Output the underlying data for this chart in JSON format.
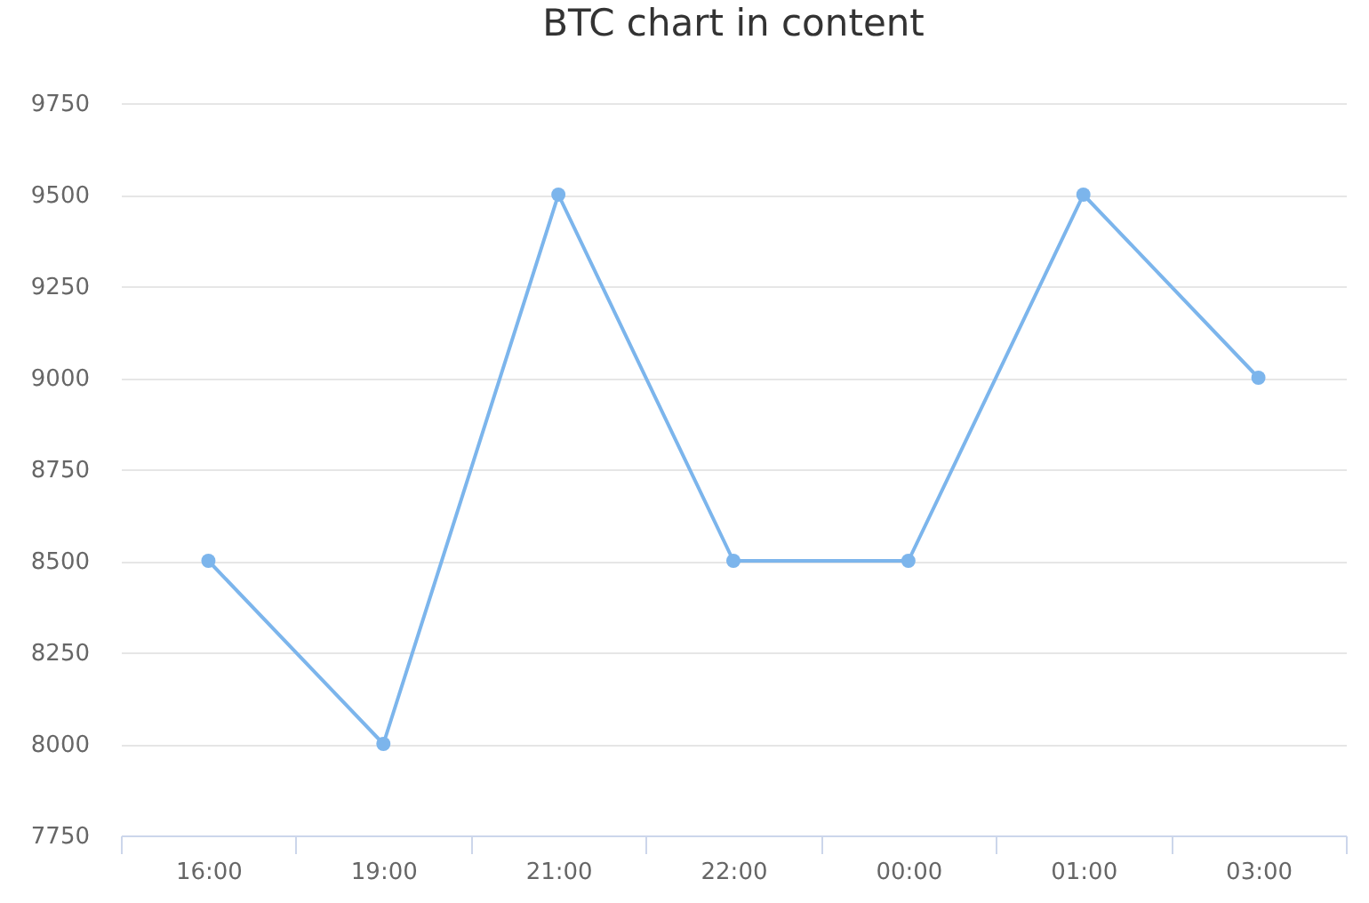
{
  "chart_data": {
    "type": "line",
    "title": "BTC chart in content",
    "categories": [
      "16:00",
      "19:00",
      "21:00",
      "22:00",
      "00:00",
      "01:00",
      "03:00"
    ],
    "series": [
      {
        "color": "#7cb5ec",
        "values": [
          8500,
          8000,
          9500,
          8500,
          8500,
          9500,
          9000
        ]
      }
    ],
    "ylim": [
      7750,
      9750
    ],
    "yticks": [
      7750,
      8000,
      8250,
      8500,
      8750,
      9000,
      9250,
      9500,
      9750
    ],
    "grid": "y",
    "marker": "circle",
    "line_style": "solid"
  }
}
